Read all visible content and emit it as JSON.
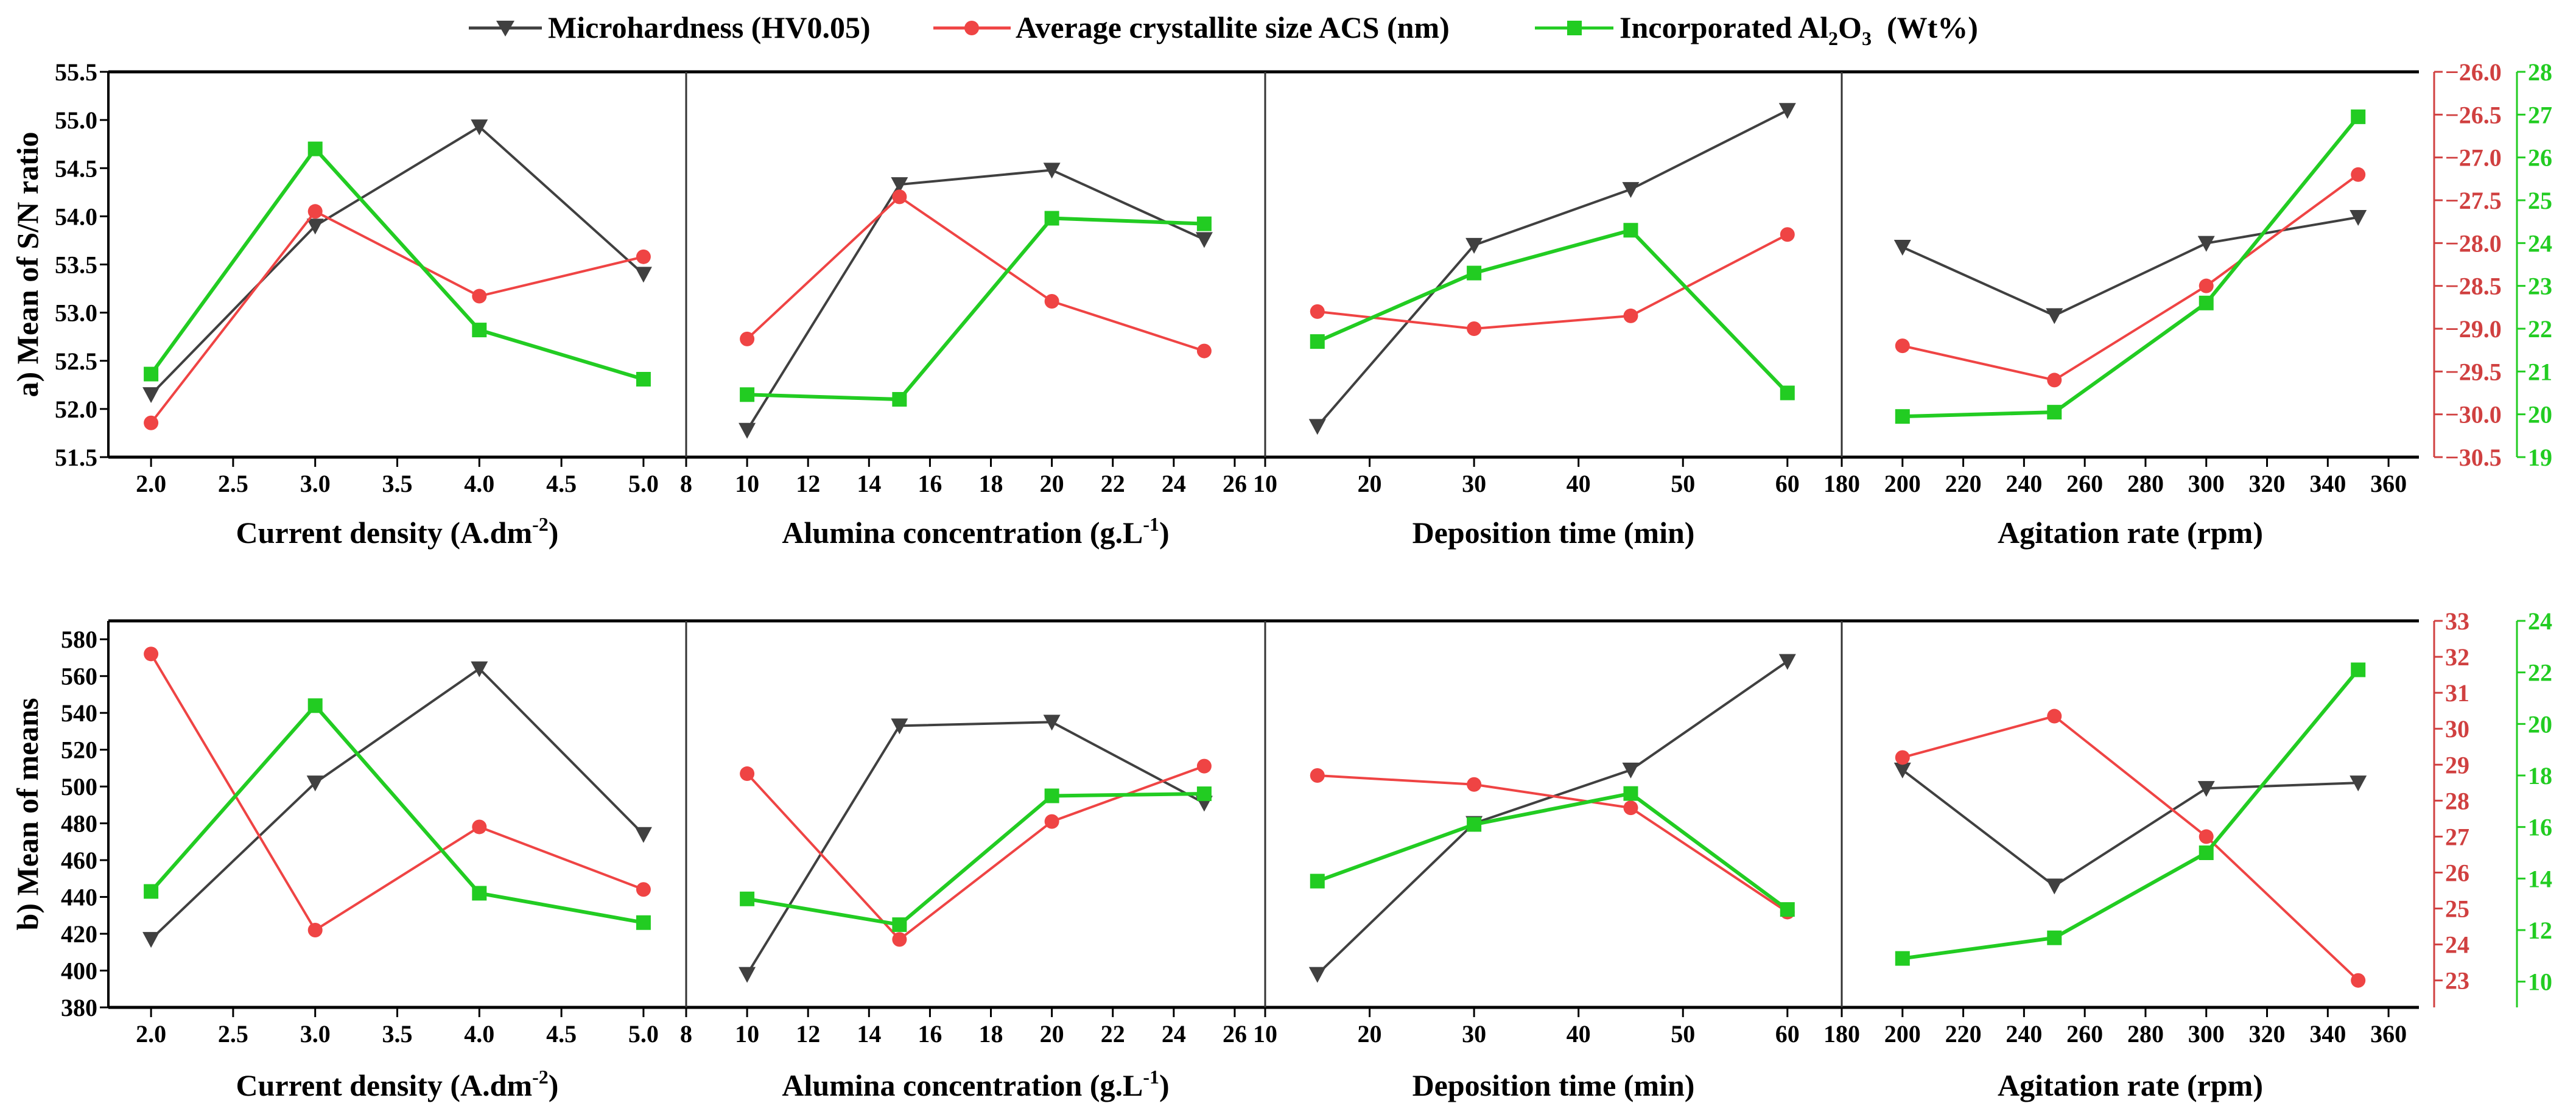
{
  "legend": {
    "microhardness": "Microhardness (HV0.05)",
    "acs": "Average crystallite size ACS (nm)",
    "al2o3_prefix": "Incorporated Al",
    "al2o3_sub1": "2",
    "al2o3_mid": "O",
    "al2o3_sub2": "3",
    "al2o3_suffix": "  (Wt%)"
  },
  "colors": {
    "microhardness": "#404040",
    "acs": "#ef4444",
    "al2o3": "#22cc22",
    "red_axis": "#d04040",
    "green_axis": "#22cc22"
  },
  "chart_data": [
    {
      "type": "line",
      "ylabel": "a) Mean of S/N ratio",
      "ylim": [
        51.5,
        55.5
      ],
      "yticks": [
        51.5,
        52.0,
        52.5,
        53.0,
        53.5,
        54.0,
        54.5,
        55.0,
        55.5
      ],
      "right_axes": {
        "acs": {
          "ylim": [
            -30.5,
            -26.0
          ],
          "ticks": [
            -30.5,
            -30.0,
            -29.5,
            -29.0,
            -28.5,
            -28.0,
            -27.5,
            -27.0,
            -26.5,
            -26.0
          ]
        },
        "al2o3": {
          "ylim": [
            19,
            28
          ],
          "ticks": [
            19,
            20,
            21,
            22,
            23,
            24,
            25,
            26,
            27,
            28
          ]
        }
      },
      "subplots": [
        {
          "xlabel": "Current density (A.dm",
          "xlabel_sup": "-2",
          "xlabel_end": ")",
          "xlim": [
            1.74,
            5.26
          ],
          "xticks": [
            "2.0",
            "2.5",
            "3.0",
            "3.5",
            "4.0",
            "4.5",
            "5.0"
          ],
          "x": [
            2,
            3,
            4,
            5
          ],
          "series": {
            "microhardness": [
              52.15,
              53.9,
              54.93,
              53.4
            ],
            "acs": [
              -30.1,
              -27.63,
              -28.62,
              -28.16
            ],
            "al2o3": [
              20.94,
              26.2,
              21.97,
              20.82
            ]
          }
        },
        {
          "xlabel": "Alumina concentration (g.L",
          "xlabel_sup": "-1",
          "xlabel_end": ")",
          "xlim": [
            8,
            27
          ],
          "xticks": [
            "8",
            "10",
            "12",
            "14",
            "16",
            "18",
            "20",
            "22",
            "24",
            "26"
          ],
          "x": [
            10,
            15,
            20,
            25
          ],
          "series": {
            "microhardness": [
              51.78,
              54.33,
              54.48,
              53.76
            ],
            "acs": [
              -29.12,
              -27.46,
              -28.68,
              -29.26
            ],
            "al2o3": [
              20.46,
              20.35,
              24.58,
              24.45
            ]
          }
        },
        {
          "xlabel": "Deposition time (min)",
          "xlabel_sup": "",
          "xlabel_end": "",
          "xlim": [
            10,
            65.2
          ],
          "xticks": [
            "10",
            "20",
            "30",
            "40",
            "50",
            "60"
          ],
          "x": [
            15,
            30,
            45,
            60
          ],
          "series": {
            "microhardness": [
              51.82,
              53.7,
              54.28,
              55.1
            ],
            "acs": [
              -28.8,
              -29.0,
              -28.85,
              -27.9
            ],
            "al2o3": [
              21.7,
              23.3,
              24.3,
              20.5
            ]
          }
        },
        {
          "xlabel": "Agitation rate (rpm)",
          "xlabel_sup": "",
          "xlabel_end": "",
          "xlim": [
            180,
            370
          ],
          "xticks": [
            "180",
            "200",
            "220",
            "240",
            "260",
            "280",
            "300",
            "320",
            "340",
            "360"
          ],
          "x": [
            200,
            250,
            300,
            350
          ],
          "series": {
            "microhardness": [
              53.68,
              52.97,
              53.72,
              53.99
            ],
            "acs": [
              -29.2,
              -29.6,
              -28.5,
              -27.2
            ],
            "al2o3": [
              19.95,
              20.05,
              22.6,
              26.95
            ]
          }
        }
      ]
    },
    {
      "type": "line",
      "ylabel": "b) Mean of means",
      "ylim": [
        380,
        590
      ],
      "yticks": [
        380,
        400,
        420,
        440,
        460,
        480,
        500,
        520,
        540,
        560,
        580
      ],
      "right_axes": {
        "acs": {
          "ylim": [
            22.25,
            33
          ],
          "ticks": [
            23,
            24,
            25,
            26,
            27,
            28,
            29,
            30,
            31,
            32,
            33
          ]
        },
        "al2o3": {
          "ylim": [
            9,
            24
          ],
          "ticks": [
            10,
            12,
            14,
            16,
            18,
            20,
            22,
            24
          ]
        }
      },
      "subplots": [
        {
          "xlabel": "Current density (A.dm",
          "xlabel_sup": "-2",
          "xlabel_end": ")",
          "xlim": [
            1.74,
            5.26
          ],
          "xticks": [
            "2.0",
            "2.5",
            "3.0",
            "3.5",
            "4.0",
            "4.5",
            "5.0"
          ],
          "x": [
            2,
            3,
            4,
            5
          ],
          "series": {
            "microhardness": [
              417,
              502,
              564,
              474
            ],
            "acs": [
              32.08,
              24.4,
              27.27,
              25.53
            ],
            "al2o3": [
              13.5,
              20.71,
              13.43,
              12.29
            ]
          }
        },
        {
          "xlabel": "Alumina concentration (g.L",
          "xlabel_sup": "-1",
          "xlabel_end": ")",
          "xlim": [
            8,
            27
          ],
          "xticks": [
            "8",
            "10",
            "12",
            "14",
            "16",
            "18",
            "20",
            "22",
            "24",
            "26"
          ],
          "x": [
            10,
            15,
            20,
            25
          ],
          "series": {
            "microhardness": [
              398,
              533,
              535,
              491
            ],
            "acs": [
              28.75,
              24.14,
              27.42,
              28.96
            ],
            "al2o3": [
              13.21,
              12.21,
              17.21,
              17.29
            ]
          }
        },
        {
          "xlabel": "Deposition time (min)",
          "xlabel_sup": "",
          "xlabel_end": "",
          "xlim": [
            10,
            65.2
          ],
          "xticks": [
            "10",
            "20",
            "30",
            "40",
            "50",
            "60"
          ],
          "x": [
            15,
            30,
            45,
            60
          ],
          "series": {
            "microhardness": [
              398,
              480,
              509,
              568
            ],
            "acs": [
              28.7,
              28.45,
              27.8,
              24.9
            ],
            "al2o3": [
              13.9,
              16.1,
              17.3,
              12.8
            ]
          }
        },
        {
          "xlabel": "Agitation rate (rpm)",
          "xlabel_sup": "",
          "xlabel_end": "",
          "xlim": [
            180,
            370
          ],
          "xticks": [
            "180",
            "200",
            "220",
            "240",
            "260",
            "280",
            "300",
            "320",
            "340",
            "360"
          ],
          "x": [
            200,
            250,
            300,
            350
          ],
          "series": {
            "microhardness": [
              509,
              446,
              499,
              502
            ],
            "acs": [
              29.2,
              30.35,
              27.0,
              23.0
            ],
            "al2o3": [
              10.9,
              11.7,
              15.0,
              22.1
            ]
          }
        }
      ]
    }
  ]
}
